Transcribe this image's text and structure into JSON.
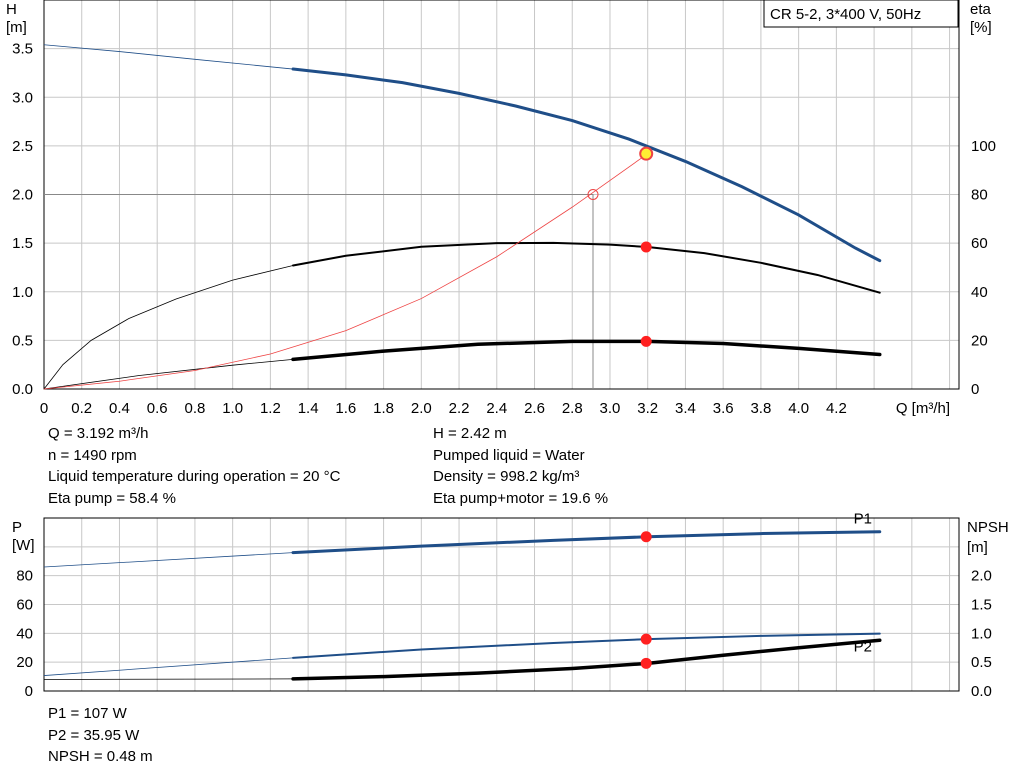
{
  "colors": {
    "head": "#1f4e88",
    "black": "#000000",
    "eta_total": "#ee4444",
    "marker": "#ff2020",
    "marker_yellow": "#ffee33",
    "grid": "#c8c8c8",
    "p1": "#1f4e88",
    "p2": "#1f4e88"
  },
  "chart_data": [
    {
      "type": "line",
      "title": "CR 5-2, 3*400 V, 50Hz",
      "xlabel": "Q [m³/h]",
      "ylabel": "H\n[m]",
      "y2label": "eta\n[%]",
      "xlim": [
        0,
        4.85
      ],
      "ylim": [
        0,
        4.0
      ],
      "y2lim": [
        0,
        160
      ],
      "grid": true,
      "x_ticks": [
        "0",
        "0.2",
        "0.4",
        "0.6",
        "0.8",
        "1.0",
        "1.2",
        "1.4",
        "1.6",
        "1.8",
        "2.0",
        "2.2",
        "2.4",
        "2.6",
        "2.8",
        "3.0",
        "3.2",
        "3.4",
        "3.6",
        "3.8",
        "4.0",
        "4.2"
      ],
      "y_ticks": [
        "0.0",
        "0.5",
        "1.0",
        "1.5",
        "2.0",
        "2.5",
        "3.0",
        "3.5"
      ],
      "y2_ticks": [
        "0",
        "20",
        "40",
        "60",
        "80",
        "100"
      ],
      "series": [
        {
          "axis": "y",
          "color": "head",
          "width": 3,
          "x": [
            1.32,
            1.6,
            1.9,
            2.2,
            2.5,
            2.8,
            3.1,
            3.4,
            3.7,
            4.0,
            4.3,
            4.43
          ],
          "y": [
            3.29,
            3.23,
            3.15,
            3.04,
            2.91,
            2.76,
            2.57,
            2.34,
            2.08,
            1.79,
            1.45,
            1.32
          ],
          "ext_x": [
            0,
            0.4,
            0.8,
            1.32
          ],
          "ext_y": [
            3.54,
            3.47,
            3.39,
            3.29
          ]
        },
        {
          "axis": "y2",
          "color": "black",
          "width": 2,
          "x": [
            1.32,
            1.6,
            2.0,
            2.4,
            2.7,
            3.0,
            3.2,
            3.5,
            3.8,
            4.1,
            4.43
          ],
          "y": [
            50.8,
            54.8,
            58.5,
            60.0,
            60.1,
            59.4,
            58.4,
            55.9,
            51.9,
            46.9,
            39.6
          ],
          "ext_x": [
            0,
            0.1,
            0.25,
            0.45,
            0.7,
            1.0,
            1.32
          ],
          "ext_y": [
            0,
            10,
            20,
            29,
            37,
            44.8,
            50.8
          ]
        },
        {
          "axis": "y2",
          "color": "black",
          "width": 3.5,
          "x": [
            1.32,
            1.8,
            2.3,
            2.8,
            3.2,
            3.6,
            4.0,
            4.43
          ],
          "y": [
            12.2,
            15.6,
            18.4,
            19.6,
            19.6,
            18.7,
            16.7,
            14.2
          ],
          "ext_x": [
            0,
            0.5,
            1.0,
            1.32
          ],
          "ext_y": [
            0,
            5.5,
            9.8,
            12.2
          ]
        },
        {
          "axis": "y",
          "color": "eta_total",
          "width": 0.8,
          "x": [
            0,
            0.4,
            0.8,
            1.2,
            1.6,
            2.0,
            2.4,
            2.8,
            3.2
          ],
          "y": [
            0.0,
            0.08,
            0.19,
            0.36,
            0.6,
            0.93,
            1.36,
            1.87,
            2.42
          ]
        }
      ],
      "operating_point": {
        "q": 3.192,
        "h": 2.42,
        "eta_pump": 58.4,
        "eta_total": 19.6
      },
      "secondary_point": {
        "q": 2.91,
        "h": 2.0
      },
      "info_left": [
        "Q = 3.192 m³/h",
        "n = 1490 rpm",
        "Liquid temperature during operation = 20 °C",
        "Eta pump = 58.4 %"
      ],
      "info_right": [
        "H = 2.42 m",
        "Pumped liquid = Water",
        "Density = 998.2 kg/m³",
        "Eta pump+motor = 19.6 %"
      ]
    },
    {
      "type": "line",
      "xlim": [
        0,
        4.85
      ],
      "ylabel": "P\n[W]",
      "y2label": "NPSH\n[m]",
      "ylim": [
        0,
        120
      ],
      "y2lim": [
        0,
        3.0
      ],
      "grid": true,
      "y_ticks": [
        "0",
        "20",
        "40",
        "60",
        "80"
      ],
      "y2_ticks": [
        "0.0",
        "0.5",
        "1.0",
        "1.5",
        "2.0"
      ],
      "series": [
        {
          "name": "P1",
          "axis": "y",
          "color": "p1",
          "width": 3,
          "x": [
            1.32,
            2.0,
            2.7,
            3.2,
            3.8,
            4.43
          ],
          "y": [
            96.0,
            100.5,
            104.5,
            107.0,
            109.2,
            110.5
          ],
          "ext_x": [
            0,
            1.32
          ],
          "ext_y": [
            86.0,
            96.0
          ]
        },
        {
          "name": "P2",
          "axis": "y",
          "color": "p2",
          "width": 2,
          "x": [
            1.32,
            2.0,
            2.7,
            3.2,
            3.8,
            4.43
          ],
          "y": [
            23.0,
            28.8,
            33.3,
            35.95,
            38.2,
            39.8
          ],
          "ext_x": [
            0,
            1.32
          ],
          "ext_y": [
            10.7,
            23.0
          ]
        },
        {
          "axis": "y2",
          "color": "black",
          "width": 3.5,
          "x": [
            1.32,
            1.8,
            2.3,
            2.8,
            3.2,
            3.6,
            4.0,
            4.43
          ],
          "y": [
            0.21,
            0.25,
            0.31,
            0.39,
            0.48,
            0.62,
            0.75,
            0.88
          ],
          "ext_x": [
            0,
            1.32
          ],
          "ext_y": [
            0.2,
            0.21
          ]
        }
      ],
      "operating_point": {
        "q": 3.192,
        "p1": 107,
        "p2": 35.95,
        "npsh": 0.48
      },
      "info_left": [
        "P1 = 107 W",
        "P2 = 35.95 W",
        "NPSH = 0.48 m"
      ]
    }
  ]
}
